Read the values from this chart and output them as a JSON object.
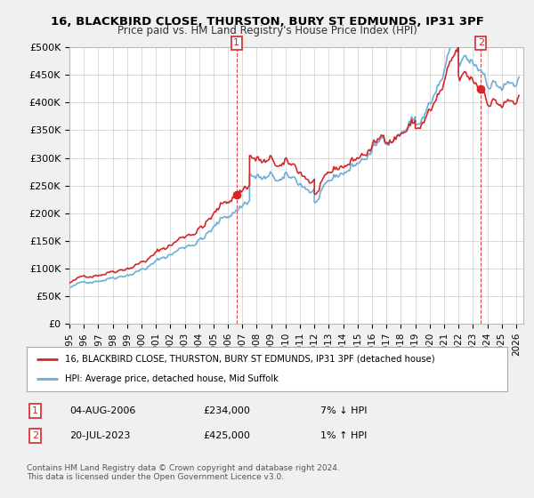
{
  "title1": "16, BLACKBIRD CLOSE, THURSTON, BURY ST EDMUNDS, IP31 3PF",
  "title2": "Price paid vs. HM Land Registry's House Price Index (HPI)",
  "ylabel_ticks": [
    "£0",
    "£50K",
    "£100K",
    "£150K",
    "£200K",
    "£250K",
    "£300K",
    "£350K",
    "£400K",
    "£450K",
    "£500K"
  ],
  "ytick_vals": [
    0,
    50000,
    100000,
    150000,
    200000,
    250000,
    300000,
    350000,
    400000,
    450000,
    500000
  ],
  "xlim": [
    1995.0,
    2026.5
  ],
  "ylim": [
    0,
    500000
  ],
  "purchase1_date": 2006.59,
  "purchase1_price": 234000,
  "purchase2_date": 2023.55,
  "purchase2_price": 425000,
  "legend_line1": "16, BLACKBIRD CLOSE, THURSTON, BURY ST EDMUNDS, IP31 3PF (detached house)",
  "legend_line2": "HPI: Average price, detached house, Mid Suffolk",
  "table_row1": [
    "1",
    "04-AUG-2006",
    "£234,000",
    "7% ↓ HPI"
  ],
  "table_row2": [
    "2",
    "20-JUL-2023",
    "£425,000",
    "1% ↑ HPI"
  ],
  "footer": "Contains HM Land Registry data © Crown copyright and database right 2024.\nThis data is licensed under the Open Government Licence v3.0.",
  "hpi_color": "#6baed6",
  "price_color": "#d62728",
  "marker_color": "#d62728",
  "bg_color": "#f0f0f0",
  "plot_bg": "#ffffff",
  "grid_color": "#cccccc"
}
